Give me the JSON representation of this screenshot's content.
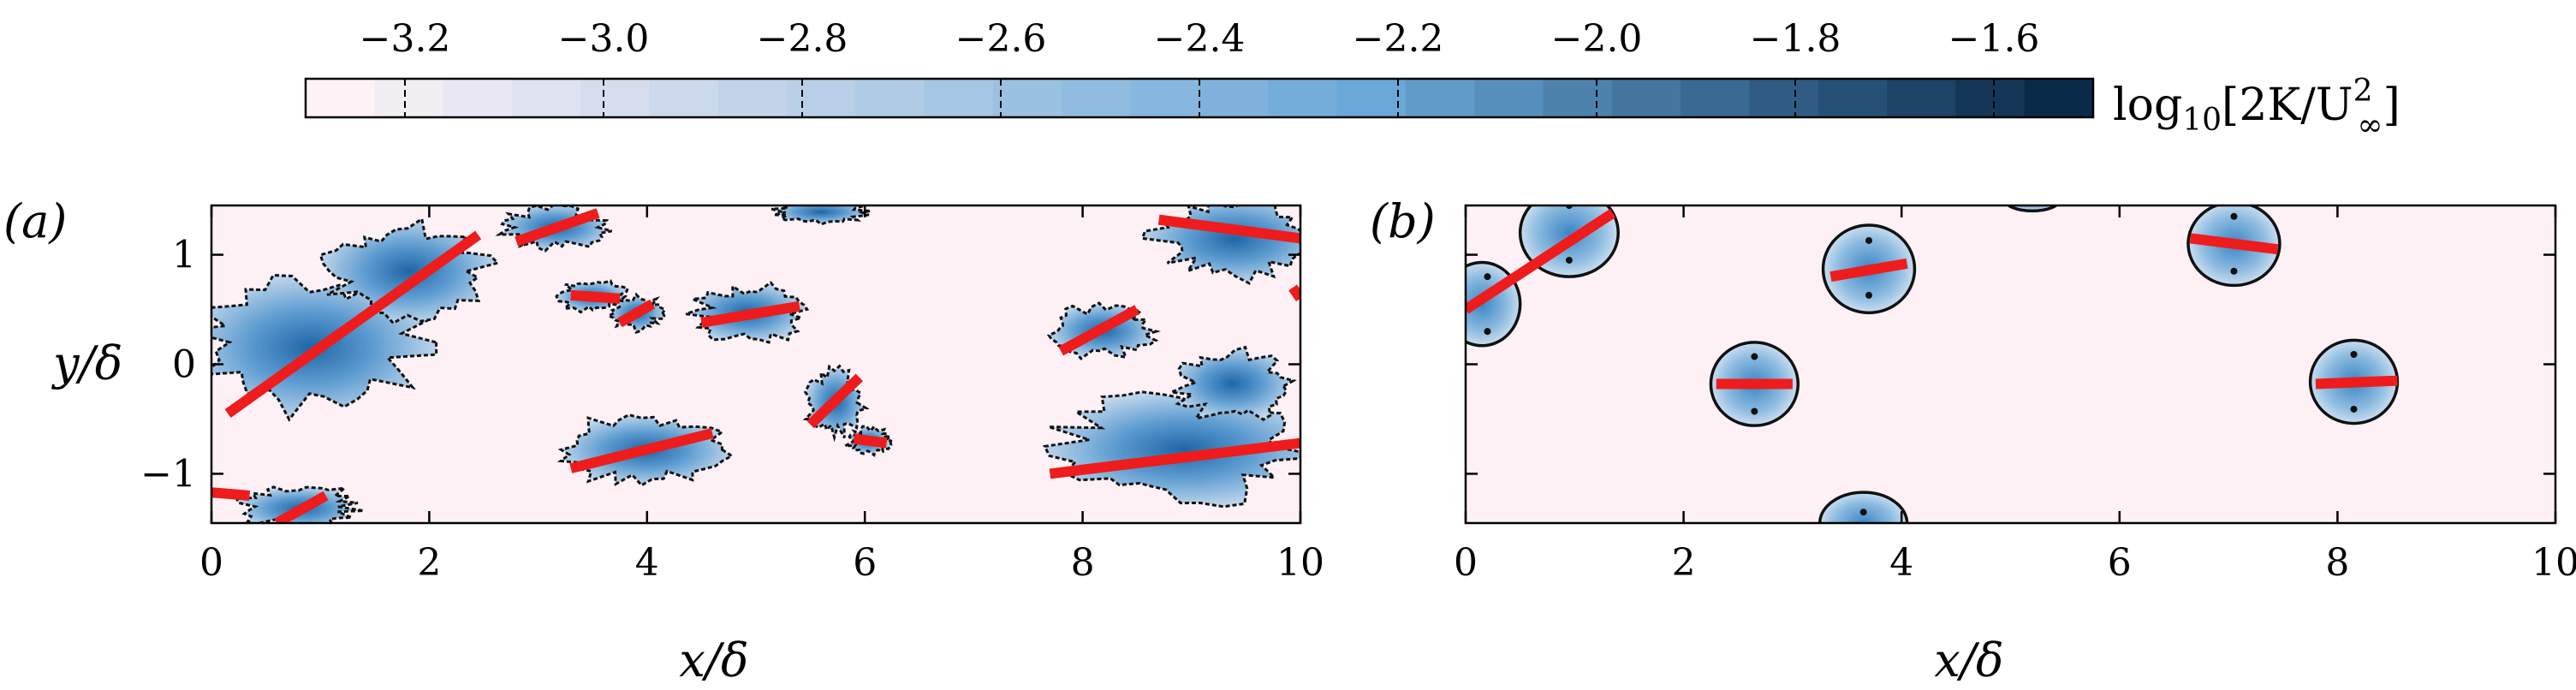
{
  "chart_data": [
    {
      "type": "heatmap",
      "panel": "(a)",
      "xlabel": "x/δ",
      "ylabel": "y/δ",
      "xlim": [
        0,
        10
      ],
      "ylim": [
        -1.45,
        1.45
      ],
      "xticks": [
        0,
        2,
        4,
        6,
        8,
        10
      ],
      "yticks": [
        -1,
        0,
        1
      ],
      "xtick_labels": [
        "0",
        "2",
        "4",
        "6",
        "8",
        "10"
      ],
      "ytick_labels": [
        "−1",
        "0",
        "1"
      ],
      "red_segments": [
        {
          "x1": 0.15,
          "y1": -0.45,
          "x2": 2.45,
          "y2": 1.18
        },
        {
          "x1": 2.8,
          "y1": 1.12,
          "x2": 3.55,
          "y2": 1.38
        },
        {
          "x1": 3.3,
          "y1": 0.63,
          "x2": 3.75,
          "y2": 0.6
        },
        {
          "x1": 3.75,
          "y1": 0.38,
          "x2": 4.05,
          "y2": 0.55
        },
        {
          "x1": 4.5,
          "y1": 0.38,
          "x2": 5.4,
          "y2": 0.53
        },
        {
          "x1": 5.5,
          "y1": -0.55,
          "x2": 5.95,
          "y2": -0.12
        },
        {
          "x1": 5.9,
          "y1": -0.68,
          "x2": 6.2,
          "y2": -0.72
        },
        {
          "x1": 3.3,
          "y1": -0.95,
          "x2": 4.6,
          "y2": -0.63
        },
        {
          "x1": 7.8,
          "y1": 0.12,
          "x2": 8.5,
          "y2": 0.5
        },
        {
          "x1": 7.7,
          "y1": -1.0,
          "x2": 10.0,
          "y2": -0.72
        },
        {
          "x1": 8.7,
          "y1": 1.32,
          "x2": 10.0,
          "y2": 1.15
        },
        {
          "x1": 0.0,
          "y1": -1.17,
          "x2": 0.35,
          "y2": -1.2
        },
        {
          "x1": 0.6,
          "y1": -1.45,
          "x2": 1.05,
          "y2": -1.2
        },
        {
          "x1": 9.93,
          "y1": 0.7,
          "x2": 10.0,
          "y2": 0.6
        }
      ],
      "structures": [
        {
          "cx": 0.9,
          "cy": 0.2,
          "rx": 1.0,
          "ry": 0.6
        },
        {
          "cx": 1.8,
          "cy": 0.85,
          "rx": 0.7,
          "ry": 0.4
        },
        {
          "cx": 3.15,
          "cy": 1.25,
          "rx": 0.45,
          "ry": 0.18
        },
        {
          "cx": 3.5,
          "cy": 0.62,
          "rx": 0.3,
          "ry": 0.13
        },
        {
          "cx": 3.9,
          "cy": 0.47,
          "rx": 0.22,
          "ry": 0.15
        },
        {
          "cx": 4.95,
          "cy": 0.46,
          "rx": 0.5,
          "ry": 0.25
        },
        {
          "cx": 5.72,
          "cy": -0.35,
          "rx": 0.25,
          "ry": 0.28
        },
        {
          "cx": 6.05,
          "cy": -0.7,
          "rx": 0.2,
          "ry": 0.12
        },
        {
          "cx": 3.95,
          "cy": -0.78,
          "rx": 0.7,
          "ry": 0.3
        },
        {
          "cx": 8.15,
          "cy": 0.3,
          "rx": 0.45,
          "ry": 0.22
        },
        {
          "cx": 8.9,
          "cy": -0.75,
          "rx": 1.1,
          "ry": 0.5
        },
        {
          "cx": 9.4,
          "cy": -0.2,
          "rx": 0.5,
          "ry": 0.3
        },
        {
          "cx": 9.4,
          "cy": 1.15,
          "rx": 0.7,
          "ry": 0.35
        },
        {
          "cx": 5.6,
          "cy": 1.4,
          "rx": 0.4,
          "ry": 0.1
        },
        {
          "cx": 0.8,
          "cy": -1.3,
          "rx": 0.5,
          "ry": 0.2
        }
      ]
    },
    {
      "type": "heatmap",
      "panel": "(b)",
      "xlabel": "x/δ",
      "ylabel": "",
      "xlim": [
        0,
        10
      ],
      "ylim": [
        -1.45,
        1.45
      ],
      "xticks": [
        0,
        2,
        4,
        6,
        8,
        10
      ],
      "yticks": [
        -1,
        0,
        1
      ],
      "xtick_labels": [
        "0",
        "2",
        "4",
        "6",
        "8",
        "10"
      ],
      "red_segments": [
        {
          "x1": 0.0,
          "y1": 0.5,
          "x2": 1.35,
          "y2": 1.38
        },
        {
          "x1": 2.3,
          "y1": -0.18,
          "x2": 3.0,
          "y2": -0.18
        },
        {
          "x1": 3.35,
          "y1": 0.8,
          "x2": 4.05,
          "y2": 0.92
        },
        {
          "x1": 6.65,
          "y1": 1.15,
          "x2": 7.45,
          "y2": 1.05
        },
        {
          "x1": 7.8,
          "y1": -0.18,
          "x2": 8.55,
          "y2": -0.15
        }
      ],
      "blobs": [
        {
          "cx": 0.95,
          "cy": 1.2,
          "rx": 0.45,
          "ry": 0.4
        },
        {
          "cx": 0.15,
          "cy": 0.55,
          "rx": 0.35,
          "ry": 0.38
        },
        {
          "cx": 2.65,
          "cy": -0.18,
          "rx": 0.4,
          "ry": 0.38
        },
        {
          "cx": 3.7,
          "cy": 0.87,
          "rx": 0.42,
          "ry": 0.4
        },
        {
          "cx": 7.05,
          "cy": 1.1,
          "rx": 0.42,
          "ry": 0.38
        },
        {
          "cx": 8.15,
          "cy": -0.16,
          "rx": 0.4,
          "ry": 0.38
        },
        {
          "cx": 3.65,
          "cy": -1.45,
          "rx": 0.4,
          "ry": 0.28
        },
        {
          "cx": 5.2,
          "cy": 1.5,
          "rx": 0.25,
          "ry": 0.1
        }
      ],
      "centres": [
        [
          0.95,
          1.45
        ],
        [
          0.95,
          0.95
        ],
        [
          0.2,
          0.8
        ],
        [
          0.2,
          0.3
        ],
        [
          2.65,
          0.07
        ],
        [
          2.65,
          -0.43
        ],
        [
          3.7,
          1.13
        ],
        [
          3.7,
          0.63
        ],
        [
          7.05,
          1.35
        ],
        [
          7.05,
          0.85
        ],
        [
          8.15,
          0.09
        ],
        [
          8.15,
          -0.41
        ],
        [
          3.65,
          -1.35
        ]
      ]
    }
  ],
  "colorbar": {
    "label_text": "log₁₀[2K/U∞²]",
    "label_prefix": "log",
    "label_sub": "10",
    "label_body": "[2K/U",
    "label_sup": "2",
    "label_subinf": "∞",
    "label_close": "]",
    "range": [
      -3.3,
      -1.5
    ],
    "ticks": [
      -3.2,
      -3.0,
      -2.8,
      -2.6,
      -2.4,
      -2.2,
      -2.0,
      -1.8,
      -1.6
    ],
    "tick_labels": [
      "−3.2",
      "−3.0",
      "−2.8",
      "−2.6",
      "−2.4",
      "−2.2",
      "−2.0",
      "−1.8",
      "−1.6"
    ],
    "levels": 26,
    "color_low": "#fdf2f6",
    "color_mid": "#6aa8d8",
    "color_high": "#0a2a4a"
  },
  "colors": {
    "background": "#fdf1f6",
    "blob": "#7fb3da",
    "blob_core": "#2e77b5",
    "contour": "#111111",
    "segment": "#ee1c1c"
  }
}
